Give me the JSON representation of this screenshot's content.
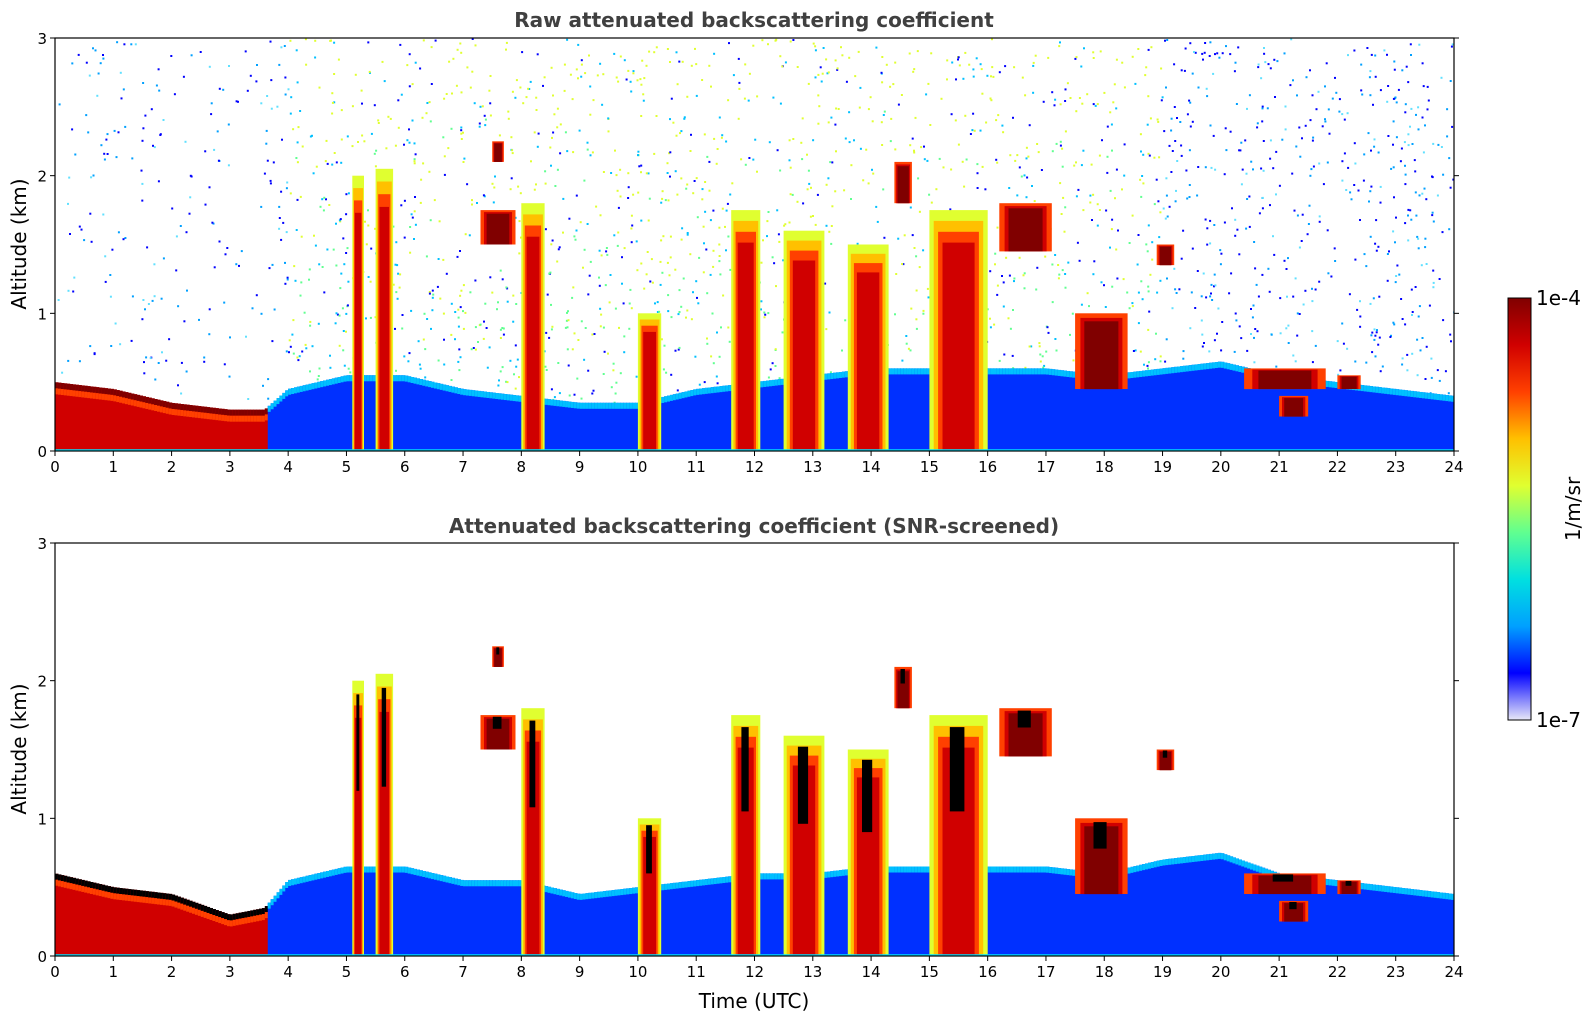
{
  "chart_data": [
    {
      "type": "heatmap",
      "title": "Raw attenuated backscattering coefficient",
      "xlabel": "",
      "ylabel": "Altitude (km)",
      "xlim": [
        0,
        24
      ],
      "ylim": [
        0,
        3
      ],
      "xticks": [
        "0",
        "1",
        "2",
        "3",
        "4",
        "5",
        "6",
        "7",
        "8",
        "9",
        "10",
        "11",
        "12",
        "13",
        "14",
        "15",
        "16",
        "17",
        "18",
        "19",
        "20",
        "21",
        "22",
        "23",
        "24"
      ],
      "yticks": [
        "0",
        "1",
        "2",
        "3"
      ],
      "screened": false,
      "boundary_layer_top_km": [
        [
          0,
          0.5
        ],
        [
          1,
          0.45
        ],
        [
          2,
          0.35
        ],
        [
          3,
          0.3
        ],
        [
          3.6,
          0.3
        ],
        [
          4,
          0.45
        ],
        [
          5,
          0.55
        ],
        [
          6,
          0.55
        ],
        [
          7,
          0.45
        ],
        [
          8,
          0.4
        ],
        [
          9,
          0.35
        ],
        [
          10,
          0.35
        ],
        [
          11,
          0.45
        ],
        [
          12,
          0.5
        ],
        [
          13,
          0.55
        ],
        [
          14,
          0.6
        ],
        [
          15,
          0.6
        ],
        [
          16,
          0.6
        ],
        [
          17,
          0.6
        ],
        [
          18,
          0.55
        ],
        [
          19,
          0.6
        ],
        [
          20,
          0.65
        ],
        [
          21,
          0.55
        ],
        [
          22,
          0.5
        ],
        [
          23,
          0.45
        ],
        [
          24,
          0.4
        ]
      ],
      "clouds": [
        {
          "t": [
            5.1,
            5.3
          ],
          "base_km": 0,
          "top_km": 2.0
        },
        {
          "t": [
            5.5,
            5.8
          ],
          "base_km": 0,
          "top_km": 2.05
        },
        {
          "t": [
            7.3,
            7.9
          ],
          "base_km": 1.5,
          "top_km": 1.75
        },
        {
          "t": [
            7.5,
            7.7
          ],
          "base_km": 2.1,
          "top_km": 2.25
        },
        {
          "t": [
            8.0,
            8.4
          ],
          "base_km": 0,
          "top_km": 1.8
        },
        {
          "t": [
            10.0,
            10.4
          ],
          "base_km": 0,
          "top_km": 1.0
        },
        {
          "t": [
            11.6,
            12.1
          ],
          "base_km": 0,
          "top_km": 1.75
        },
        {
          "t": [
            12.5,
            13.2
          ],
          "base_km": 0,
          "top_km": 1.6
        },
        {
          "t": [
            13.6,
            14.3
          ],
          "base_km": 0,
          "top_km": 1.5
        },
        {
          "t": [
            14.4,
            14.7
          ],
          "base_km": 1.8,
          "top_km": 2.1
        },
        {
          "t": [
            15.0,
            16.0
          ],
          "base_km": 0,
          "top_km": 1.75
        },
        {
          "t": [
            16.2,
            17.1
          ],
          "base_km": 1.45,
          "top_km": 1.8
        },
        {
          "t": [
            17.5,
            18.4
          ],
          "base_km": 0.45,
          "top_km": 1.0
        },
        {
          "t": [
            18.9,
            19.2
          ],
          "base_km": 1.35,
          "top_km": 1.5
        },
        {
          "t": [
            20.4,
            21.8
          ],
          "base_km": 0.45,
          "top_km": 0.6
        },
        {
          "t": [
            21.0,
            21.5
          ],
          "base_km": 0.25,
          "top_km": 0.4
        },
        {
          "t": [
            22.0,
            22.4
          ],
          "base_km": 0.45,
          "top_km": 0.55
        }
      ]
    },
    {
      "type": "heatmap",
      "title": "Attenuated backscattering coefficient (SNR-screened)",
      "xlabel": "Time (UTC)",
      "ylabel": "Altitude (km)",
      "xlim": [
        0,
        24
      ],
      "ylim": [
        0,
        3
      ],
      "xticks": [
        "0",
        "1",
        "2",
        "3",
        "4",
        "5",
        "6",
        "7",
        "8",
        "9",
        "10",
        "11",
        "12",
        "13",
        "14",
        "15",
        "16",
        "17",
        "18",
        "19",
        "20",
        "21",
        "22",
        "23",
        "24"
      ],
      "yticks": [
        "0",
        "1",
        "2",
        "3"
      ],
      "screened": true,
      "boundary_layer_top_km": [
        [
          0,
          0.6
        ],
        [
          1,
          0.5
        ],
        [
          2,
          0.45
        ],
        [
          3,
          0.3
        ],
        [
          3.6,
          0.35
        ],
        [
          4,
          0.55
        ],
        [
          5,
          0.65
        ],
        [
          6,
          0.65
        ],
        [
          7,
          0.55
        ],
        [
          8,
          0.55
        ],
        [
          9,
          0.45
        ],
        [
          10,
          0.5
        ],
        [
          11,
          0.55
        ],
        [
          12,
          0.6
        ],
        [
          13,
          0.6
        ],
        [
          14,
          0.65
        ],
        [
          15,
          0.65
        ],
        [
          16,
          0.65
        ],
        [
          17,
          0.65
        ],
        [
          18,
          0.6
        ],
        [
          19,
          0.7
        ],
        [
          20,
          0.75
        ],
        [
          21,
          0.6
        ],
        [
          22,
          0.55
        ],
        [
          23,
          0.5
        ],
        [
          24,
          0.45
        ]
      ],
      "clouds": [
        {
          "t": [
            5.1,
            5.3
          ],
          "base_km": 0,
          "top_km": 2.0
        },
        {
          "t": [
            5.5,
            5.8
          ],
          "base_km": 0,
          "top_km": 2.05
        },
        {
          "t": [
            7.3,
            7.9
          ],
          "base_km": 1.5,
          "top_km": 1.75
        },
        {
          "t": [
            7.5,
            7.7
          ],
          "base_km": 2.1,
          "top_km": 2.25
        },
        {
          "t": [
            8.0,
            8.4
          ],
          "base_km": 0,
          "top_km": 1.8
        },
        {
          "t": [
            10.0,
            10.4
          ],
          "base_km": 0,
          "top_km": 1.0
        },
        {
          "t": [
            11.6,
            12.1
          ],
          "base_km": 0,
          "top_km": 1.75
        },
        {
          "t": [
            12.5,
            13.2
          ],
          "base_km": 0,
          "top_km": 1.6
        },
        {
          "t": [
            13.6,
            14.3
          ],
          "base_km": 0,
          "top_km": 1.5
        },
        {
          "t": [
            14.4,
            14.7
          ],
          "base_km": 1.8,
          "top_km": 2.1
        },
        {
          "t": [
            15.0,
            16.0
          ],
          "base_km": 0,
          "top_km": 1.75
        },
        {
          "t": [
            16.2,
            17.1
          ],
          "base_km": 1.45,
          "top_km": 1.8
        },
        {
          "t": [
            17.5,
            18.4
          ],
          "base_km": 0.45,
          "top_km": 1.0
        },
        {
          "t": [
            18.9,
            19.2
          ],
          "base_km": 1.35,
          "top_km": 1.5
        },
        {
          "t": [
            20.4,
            21.8
          ],
          "base_km": 0.45,
          "top_km": 0.6
        },
        {
          "t": [
            21.0,
            21.5
          ],
          "base_km": 0.25,
          "top_km": 0.4
        },
        {
          "t": [
            22.0,
            22.4
          ],
          "base_km": 0.45,
          "top_km": 0.55
        }
      ]
    }
  ],
  "colorbar": {
    "label": "1/m/sr",
    "max_label": "1e-4",
    "min_label": "1e-7",
    "scale": "log",
    "colormap": [
      "#e8e8f8",
      "#0000ff",
      "#00a0ff",
      "#00e0e0",
      "#60ff90",
      "#e0ff30",
      "#ffc000",
      "#ff4000",
      "#d00000",
      "#800000"
    ]
  }
}
